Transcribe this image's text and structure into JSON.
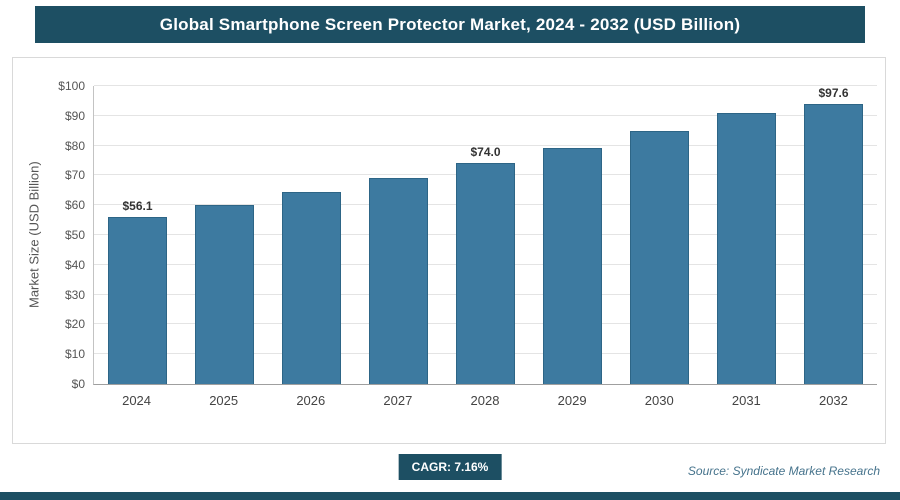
{
  "title": "Global Smartphone Screen Protector Market, 2024 - 2032 (USD Billion)",
  "chart_data": {
    "type": "bar",
    "categories": [
      "2024",
      "2025",
      "2026",
      "2027",
      "2028",
      "2029",
      "2030",
      "2031",
      "2032"
    ],
    "values": [
      56.1,
      60.1,
      64.4,
      69.0,
      74.0,
      79.3,
      85.0,
      91.1,
      97.6
    ],
    "bar_labels": [
      "$56.1",
      "",
      "",
      "",
      "$74.0",
      "",
      "",
      "",
      "$97.6"
    ],
    "title": "Global Smartphone Screen Protector Market, 2024 - 2032 (USD Billion)",
    "xlabel": "",
    "ylabel": "Market Size (USD Billion)",
    "ylim": [
      0,
      100
    ],
    "ytick_step": 10,
    "ytick_prefix": "$",
    "grid": true,
    "legend": "none",
    "bar_color": "#3d7aa0",
    "bar_border_color": "#2d6586"
  },
  "footer": {
    "cagr_label": "CAGR: 7.16%",
    "source": "Source: Syndicate Market Research"
  },
  "colors": {
    "accent": "#1d4f63",
    "bar_fill": "#3d7aa0",
    "gridline": "#e4e4e4"
  }
}
